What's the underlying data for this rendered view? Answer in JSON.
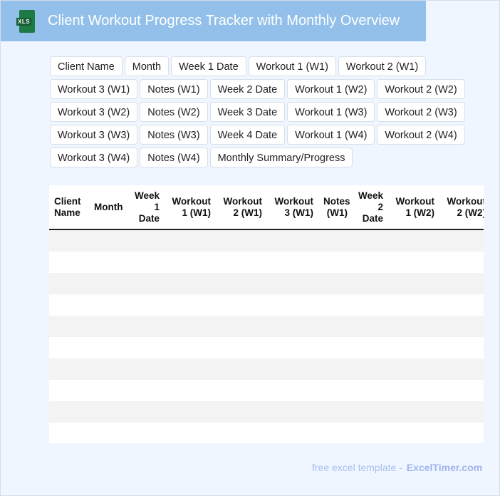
{
  "header": {
    "title": "Client Workout Progress Tracker with Monthly Overview",
    "icon": "xls-file-icon",
    "icon_label": "XLS"
  },
  "columns": [
    "Client Name",
    "Month",
    "Week 1 Date",
    "Workout 1 (W1)",
    "Workout 2 (W1)",
    "Workout 3 (W1)",
    "Notes (W1)",
    "Week 2 Date",
    "Workout 1 (W2)",
    "Workout 2 (W2)",
    "Workout 3 (W2)",
    "Notes (W2)",
    "Week 3 Date",
    "Workout 1 (W3)",
    "Workout 2 (W3)",
    "Workout 3 (W3)",
    "Notes (W3)",
    "Week 4 Date",
    "Workout 1 (W4)",
    "Workout 2 (W4)",
    "Workout 3 (W4)",
    "Notes (W4)",
    "Monthly Summary/Progress"
  ],
  "table": {
    "row_count": 10
  },
  "footer": {
    "text": "free excel template -",
    "brand": "ExcelTimer.com"
  }
}
